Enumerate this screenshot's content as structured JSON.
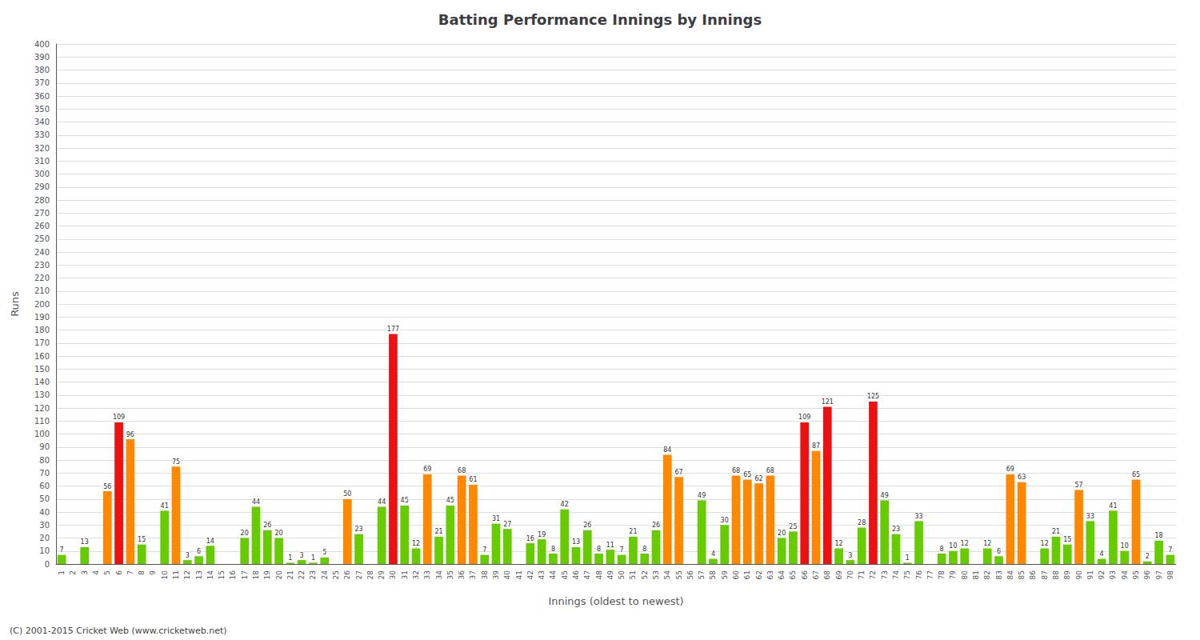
{
  "chart_data": {
    "type": "bar",
    "title": "Batting Performance Innings by Innings",
    "x_label": "Innings (oldest to newest)",
    "y_label": "Runs",
    "annotations": [
      "(C) 2001-2015 Cricket Web (www.cricketweb.net)"
    ],
    "categories": [
      "1",
      "2",
      "3",
      "4",
      "5",
      "6",
      "7",
      "8",
      "9",
      "10",
      "11",
      "12",
      "13",
      "14",
      "15",
      "16",
      "17",
      "18",
      "19",
      "20",
      "21",
      "22",
      "23",
      "24",
      "25",
      "26",
      "27",
      "28",
      "29",
      "30",
      "31",
      "32",
      "33",
      "34",
      "35",
      "36",
      "37",
      "38",
      "39",
      "40",
      "41",
      "42",
      "43",
      "44",
      "45",
      "46",
      "47",
      "48",
      "49",
      "50",
      "51",
      "52",
      "53",
      "54",
      "55",
      "56",
      "57",
      "58",
      "59",
      "60",
      "61",
      "62",
      "63",
      "64",
      "65",
      "66",
      "67",
      "68",
      "69",
      "70",
      "71",
      "72",
      "73",
      "74",
      "75",
      "76",
      "77",
      "78",
      "79",
      "80",
      "81",
      "82",
      "83",
      "84",
      "85",
      "86",
      "87",
      "88",
      "89",
      "90",
      "91",
      "92",
      "93",
      "94",
      "95",
      "96",
      "97",
      "98"
    ],
    "values": [
      7,
      0,
      13,
      0,
      56,
      109,
      96,
      15,
      0,
      41,
      75,
      3,
      6,
      14,
      0,
      0,
      20,
      44,
      26,
      20,
      1,
      3,
      1,
      5,
      0,
      50,
      23,
      0,
      44,
      177,
      45,
      12,
      69,
      21,
      45,
      68,
      61,
      7,
      31,
      27,
      0,
      16,
      19,
      8,
      42,
      13,
      26,
      8,
      11,
      7,
      21,
      8,
      26,
      84,
      67,
      0,
      49,
      4,
      30,
      68,
      65,
      62,
      68,
      20,
      25,
      109,
      87,
      121,
      12,
      3,
      28,
      125,
      49,
      23,
      1,
      33,
      0,
      8,
      10,
      12,
      0,
      12,
      6,
      69,
      63,
      0,
      12,
      21,
      15,
      57,
      33,
      4,
      41,
      10,
      65,
      2,
      18,
      7
    ],
    "value_labels": [
      "7",
      null,
      "13",
      null,
      "56",
      "109",
      "96",
      "15",
      null,
      "41",
      "75",
      "3",
      "6",
      "14",
      null,
      null,
      "20",
      "44",
      "26",
      "20",
      "1",
      "3",
      "1",
      "5",
      null,
      "50",
      "23",
      null,
      "44",
      "177",
      "45",
      "12",
      "69",
      "21",
      "45",
      "68",
      "61",
      "7",
      "31",
      "27",
      null,
      "16",
      "19",
      "8",
      "42",
      "13",
      "26",
      "8",
      "11",
      "7",
      "21",
      "8",
      "26",
      "84",
      "67",
      null,
      "49",
      "4",
      "30",
      "68",
      "65",
      "62",
      "68",
      "20",
      "25",
      "109",
      "87",
      "121",
      "12",
      "3",
      "28",
      "125",
      "49",
      "23",
      "1",
      "33",
      null,
      "8",
      "10",
      "12",
      null,
      "12",
      "6",
      "69",
      "63",
      null,
      "12",
      "21",
      "15",
      "57",
      "33",
      "4",
      "41",
      "10",
      "65",
      "2",
      "18",
      "7"
    ],
    "colors": [
      "#66CC00",
      "#66CC00",
      "#66CC00",
      "#66CC00",
      "#FF8800",
      "#EE1111",
      "#FF8800",
      "#66CC00",
      "#66CC00",
      "#66CC00",
      "#FF8800",
      "#66CC00",
      "#66CC00",
      "#66CC00",
      "#66CC00",
      "#66CC00",
      "#66CC00",
      "#66CC00",
      "#66CC00",
      "#66CC00",
      "#66CC00",
      "#66CC00",
      "#66CC00",
      "#66CC00",
      "#66CC00",
      "#FF8800",
      "#66CC00",
      "#66CC00",
      "#66CC00",
      "#EE1111",
      "#66CC00",
      "#66CC00",
      "#FF8800",
      "#66CC00",
      "#66CC00",
      "#FF8800",
      "#FF8800",
      "#66CC00",
      "#66CC00",
      "#66CC00",
      "#66CC00",
      "#66CC00",
      "#66CC00",
      "#66CC00",
      "#66CC00",
      "#66CC00",
      "#66CC00",
      "#66CC00",
      "#66CC00",
      "#66CC00",
      "#66CC00",
      "#66CC00",
      "#66CC00",
      "#FF8800",
      "#FF8800",
      "#66CC00",
      "#66CC00",
      "#66CC00",
      "#66CC00",
      "#FF8800",
      "#FF8800",
      "#FF8800",
      "#FF8800",
      "#66CC00",
      "#66CC00",
      "#EE1111",
      "#FF8800",
      "#EE1111",
      "#66CC00",
      "#66CC00",
      "#66CC00",
      "#EE1111",
      "#66CC00",
      "#66CC00",
      "#66CC00",
      "#66CC00",
      "#66CC00",
      "#66CC00",
      "#66CC00",
      "#66CC00",
      "#66CC00",
      "#66CC00",
      "#66CC00",
      "#FF8800",
      "#FF8800",
      "#66CC00",
      "#66CC00",
      "#66CC00",
      "#66CC00",
      "#FF8800",
      "#66CC00",
      "#66CC00",
      "#66CC00",
      "#66CC00",
      "#FF8800",
      "#66CC00",
      "#66CC00",
      "#66CC00"
    ],
    "ylim": [
      0,
      400
    ],
    "yticks": [
      0,
      10,
      20,
      30,
      40,
      50,
      60,
      70,
      80,
      90,
      100,
      110,
      120,
      130,
      140,
      150,
      160,
      170,
      180,
      190,
      200,
      210,
      220,
      230,
      240,
      250,
      260,
      270,
      280,
      290,
      300,
      310,
      320,
      330,
      340,
      350,
      360,
      370,
      380,
      390,
      400
    ],
    "grid": true,
    "data_labels": true
  }
}
